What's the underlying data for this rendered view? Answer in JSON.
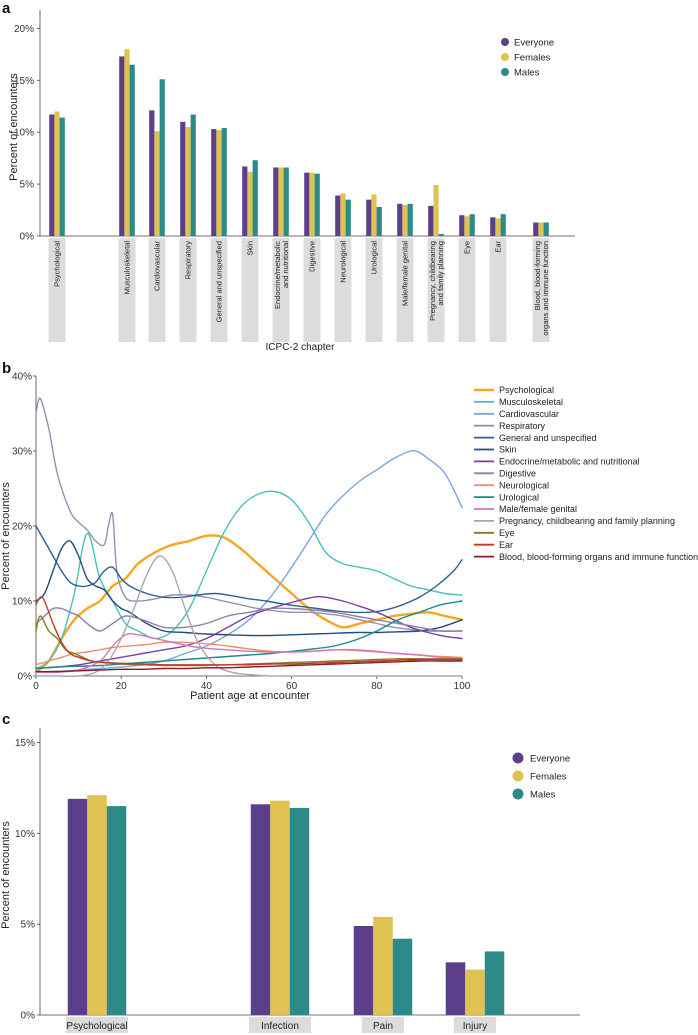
{
  "colors": {
    "everyone": "#5b3f8a",
    "females": "#dfc252",
    "males": "#2e8a89",
    "label_box": "#dcdcdc",
    "axis": "#444444"
  },
  "chart_data": [
    {
      "panel": "a",
      "type": "bar",
      "title": "",
      "xlabel": "ICPC-2 chapter",
      "ylabel": "Percent of encounters",
      "ylim": [
        0,
        21
      ],
      "yticks": [
        "0%",
        "5%",
        "10%",
        "15%",
        "20%"
      ],
      "legend_position": "top-right",
      "categories": [
        "Psychological",
        "Musculoskeletal",
        "Cardiovascular",
        "Respiratory",
        "General and unspecified",
        "Skin",
        "Endocrine/metabolic and nutritional",
        "Digestive",
        "Neurological",
        "Urological",
        "Male/female genital",
        "Pregnancy, childbearing and family planning",
        "Eye",
        "Ear",
        "Blood, blood-forming organs and immune function"
      ],
      "series": [
        {
          "name": "Everyone",
          "values": [
            11.7,
            17.3,
            12.1,
            11.0,
            10.3,
            6.7,
            6.6,
            6.1,
            3.9,
            3.5,
            3.1,
            2.9,
            2.0,
            1.8,
            1.3
          ]
        },
        {
          "name": "Females",
          "values": [
            12.0,
            18.0,
            10.1,
            10.5,
            10.2,
            6.2,
            6.6,
            6.1,
            4.1,
            4.0,
            3.0,
            4.9,
            1.9,
            1.7,
            1.3
          ]
        },
        {
          "name": "Males",
          "values": [
            11.4,
            16.5,
            15.1,
            11.7,
            10.4,
            7.3,
            6.6,
            6.0,
            3.5,
            2.8,
            3.1,
            0.2,
            2.1,
            2.1,
            1.3
          ]
        }
      ]
    },
    {
      "panel": "b",
      "type": "line",
      "title": "",
      "xlabel": "Patient age at encounter",
      "ylabel": "Percent of encounters",
      "xlim": [
        0,
        100
      ],
      "ylim": [
        0,
        40
      ],
      "xticks": [
        "0",
        "20",
        "40",
        "60",
        "80",
        "100"
      ],
      "yticks": [
        "0%",
        "10%",
        "20%",
        "30%",
        "40%"
      ],
      "legend_position": "right",
      "series": [
        {
          "name": "Psychological",
          "color": "#f5a623",
          "x": [
            0,
            3,
            6,
            9,
            12,
            15,
            18,
            21,
            24,
            28,
            32,
            36,
            40,
            44,
            48,
            52,
            56,
            60,
            64,
            68,
            72,
            76,
            80,
            84,
            88,
            92,
            96,
            100
          ],
          "y": [
            0.5,
            2,
            5,
            7.5,
            9,
            10,
            12,
            13,
            15,
            16.5,
            17.5,
            18,
            18.7,
            18.5,
            17,
            15,
            13,
            11,
            9,
            7.5,
            6.5,
            7,
            7.5,
            8,
            8.3,
            8.5,
            8,
            7.5
          ]
        },
        {
          "name": "Musculoskeletal",
          "color": "#4cbfb9",
          "x": [
            0,
            3,
            6,
            9,
            12,
            15,
            18,
            21,
            24,
            28,
            32,
            36,
            40,
            44,
            48,
            52,
            56,
            60,
            64,
            68,
            72,
            76,
            80,
            84,
            88,
            92,
            96,
            100
          ],
          "y": [
            1,
            2,
            5,
            11,
            19,
            13,
            10,
            7,
            6,
            5,
            6,
            9,
            14,
            19,
            22.5,
            24.2,
            24.6,
            23.5,
            20.5,
            16.5,
            15,
            14.5,
            14,
            13,
            12,
            11.5,
            11,
            10.8
          ]
        },
        {
          "name": "Cardiovascular",
          "color": "#7aa6de",
          "x": [
            0,
            5,
            10,
            15,
            20,
            25,
            30,
            35,
            40,
            45,
            50,
            55,
            60,
            64,
            68,
            72,
            76,
            80,
            84,
            88,
            90,
            92,
            96,
            100
          ],
          "y": [
            0.5,
            0.6,
            0.8,
            1,
            1.2,
            1.5,
            2,
            3,
            4,
            5.5,
            7.5,
            10.5,
            14.5,
            18,
            21.5,
            24,
            26,
            27.5,
            29,
            30,
            29.8,
            29,
            27,
            22.5
          ]
        },
        {
          "name": "Respiratory",
          "color": "#9b8cb5",
          "x": [
            0,
            1,
            3,
            5,
            8,
            10,
            12,
            14,
            16,
            17,
            18,
            19,
            21,
            24,
            28,
            32,
            36,
            40,
            44,
            48,
            52,
            56,
            60,
            64,
            68,
            72,
            76,
            80,
            84,
            88,
            92,
            96,
            100
          ],
          "y": [
            35,
            37,
            33,
            27,
            22,
            20.5,
            19.5,
            18,
            17.5,
            20,
            21.5,
            14,
            10.5,
            10,
            10.3,
            10.8,
            10.8,
            10.5,
            10,
            9.5,
            9,
            8.7,
            8.5,
            8.5,
            8.3,
            8,
            7.5,
            7,
            6.5,
            6.2,
            6,
            6,
            6
          ]
        },
        {
          "name": "General and unspecified",
          "color": "#2e5f8f",
          "x": [
            0,
            2,
            4,
            6,
            8,
            10,
            12,
            14,
            16,
            18,
            20,
            22,
            26,
            30,
            34,
            38,
            42,
            46,
            50,
            54,
            58,
            62,
            66,
            70,
            74,
            78,
            82,
            86,
            90,
            94,
            98,
            100
          ],
          "y": [
            20,
            18,
            16,
            14,
            12.5,
            12,
            12,
            12.5,
            14,
            14.5,
            13,
            12,
            11,
            10.5,
            10.5,
            10.8,
            11,
            10.7,
            10.3,
            10,
            9.6,
            9.3,
            9,
            8.7,
            8.5,
            8.5,
            8.8,
            9.5,
            10.5,
            12,
            14,
            15.5
          ]
        },
        {
          "name": "Skin",
          "color": "#1f4e79",
          "x": [
            0,
            2,
            4,
            6,
            8,
            10,
            12,
            14,
            16,
            18,
            20,
            22,
            26,
            30,
            35,
            40,
            45,
            50,
            55,
            60,
            65,
            70,
            75,
            80,
            85,
            90,
            95,
            100
          ],
          "y": [
            10,
            11,
            14,
            17,
            18,
            16,
            13,
            12,
            11.5,
            10,
            9,
            8.5,
            7,
            6,
            5.8,
            5.6,
            5.5,
            5.4,
            5.4,
            5.5,
            5.6,
            5.7,
            5.8,
            5.8,
            5.9,
            6,
            6.5,
            7.5
          ]
        },
        {
          "name": "Endocrine/metabolic and nutritional",
          "color": "#7b3fa0",
          "x": [
            0,
            5,
            10,
            15,
            20,
            25,
            30,
            35,
            40,
            45,
            50,
            55,
            60,
            65,
            68,
            72,
            76,
            80,
            84,
            88,
            92,
            96,
            100
          ],
          "y": [
            1,
            1.2,
            1.5,
            2,
            2.5,
            3,
            3.5,
            4,
            5,
            6.5,
            8,
            9,
            9.8,
            10.5,
            10.5,
            10,
            9.3,
            8.5,
            7.5,
            6.5,
            5.8,
            5.3,
            5
          ]
        },
        {
          "name": "Digestive",
          "color": "#8e7fa8",
          "x": [
            0,
            2,
            4,
            6,
            8,
            10,
            12,
            15,
            18,
            21,
            25,
            30,
            35,
            40,
            45,
            50,
            55,
            60,
            65,
            70,
            75,
            80,
            85,
            90,
            95,
            100
          ],
          "y": [
            7,
            8,
            9,
            9,
            8.5,
            8,
            7,
            6,
            7,
            8,
            7.5,
            6.5,
            6.5,
            7,
            8,
            8.5,
            9,
            9,
            8.8,
            8.5,
            8,
            7.5,
            7,
            6.5,
            6,
            6
          ]
        },
        {
          "name": "Neurological",
          "color": "#e8916a",
          "x": [
            0,
            3,
            6,
            9,
            12,
            15,
            18,
            22,
            26,
            30,
            35,
            40,
            45,
            50,
            55,
            60,
            65,
            70,
            75,
            80,
            85,
            90,
            95,
            100
          ],
          "y": [
            1.5,
            2,
            2.5,
            3,
            3.2,
            3.5,
            3.8,
            4,
            4.2,
            4.5,
            4.5,
            4.3,
            4,
            3.6,
            3.3,
            3.2,
            3.3,
            3.5,
            3.4,
            3.2,
            3,
            2.8,
            2.6,
            2.5
          ]
        },
        {
          "name": "Urological",
          "color": "#1d8c8a",
          "x": [
            0,
            5,
            10,
            15,
            20,
            25,
            30,
            35,
            40,
            45,
            50,
            55,
            60,
            65,
            70,
            75,
            80,
            85,
            90,
            95,
            100
          ],
          "y": [
            1,
            1.2,
            1.3,
            1.4,
            1.6,
            1.8,
            2,
            2.2,
            2.4,
            2.6,
            2.8,
            3,
            3.3,
            3.6,
            4,
            4.8,
            6,
            7.5,
            8.5,
            9.5,
            10
          ]
        },
        {
          "name": "Male/female genital",
          "color": "#d278b6",
          "x": [
            0,
            5,
            10,
            15,
            18,
            21,
            24,
            28,
            32,
            36,
            40,
            45,
            50,
            55,
            60,
            65,
            70,
            75,
            80,
            85,
            90,
            95,
            100
          ],
          "y": [
            0.5,
            0.5,
            0.8,
            2,
            4,
            5.5,
            5.5,
            5,
            4.5,
            4,
            3.7,
            3.5,
            3.3,
            3.2,
            3.2,
            3.3,
            3.5,
            3.5,
            3.3,
            3,
            2.8,
            2.5,
            2.3
          ]
        },
        {
          "name": "Pregnancy, childbearing and family planning",
          "color": "#a8a8a8",
          "x": [
            0,
            5,
            10,
            14,
            17,
            20,
            23,
            26,
            29,
            32,
            35,
            38,
            42,
            46,
            50,
            55,
            60,
            100
          ],
          "y": [
            0,
            0,
            0,
            0.5,
            2,
            5,
            9,
            13.5,
            16,
            14,
            9,
            4.5,
            1.5,
            0.5,
            0.2,
            0,
            0,
            0
          ]
        },
        {
          "name": "Eye",
          "color": "#8a7a1e",
          "x": [
            0,
            1,
            3,
            5,
            7,
            9,
            11,
            13,
            16,
            20,
            25,
            30,
            35,
            40,
            45,
            50,
            55,
            60,
            65,
            70,
            75,
            80,
            85,
            90,
            95,
            100
          ],
          "y": [
            6,
            8,
            6,
            5,
            3.5,
            3,
            2.5,
            2,
            1.8,
            1.6,
            1.5,
            1.4,
            1.4,
            1.4,
            1.5,
            1.6,
            1.7,
            1.8,
            1.9,
            2,
            2.1,
            2.2,
            2.3,
            2.3,
            2.3,
            2.3
          ]
        },
        {
          "name": "Ear",
          "color": "#c0392b",
          "x": [
            0,
            1,
            2,
            4,
            6,
            8,
            10,
            13,
            16,
            20,
            25,
            30,
            35,
            40,
            45,
            50,
            55,
            60,
            65,
            70,
            75,
            80,
            85,
            90,
            95,
            100
          ],
          "y": [
            9.5,
            10.5,
            10,
            7,
            4.5,
            3,
            2.5,
            2,
            1.8,
            1.7,
            1.6,
            1.5,
            1.5,
            1.5,
            1.5,
            1.5,
            1.6,
            1.6,
            1.7,
            1.8,
            1.9,
            2,
            2.1,
            2.2,
            2.2,
            2.2
          ]
        },
        {
          "name": "Blood, blood-forming organs and immune function",
          "color": "#8b1a2b",
          "x": [
            0,
            5,
            10,
            15,
            20,
            25,
            30,
            35,
            40,
            45,
            50,
            55,
            60,
            65,
            70,
            75,
            80,
            85,
            90,
            95,
            100
          ],
          "y": [
            0.6,
            0.6,
            0.7,
            0.8,
            0.9,
            0.9,
            1,
            1,
            1.1,
            1.1,
            1.2,
            1.3,
            1.4,
            1.5,
            1.6,
            1.7,
            1.8,
            1.9,
            2,
            2,
            2
          ]
        }
      ]
    },
    {
      "panel": "c",
      "type": "bar",
      "title": "",
      "xlabel": "",
      "ylabel": "Percent of encounters",
      "ylim": [
        0,
        15.8
      ],
      "yticks": [
        "0%",
        "5%",
        "10%",
        "15%"
      ],
      "legend_position": "top-right",
      "categories": [
        "Psychological",
        "Infection",
        "Pain",
        "Injury"
      ],
      "series": [
        {
          "name": "Everyone",
          "values": [
            11.9,
            11.6,
            4.9,
            2.9
          ]
        },
        {
          "name": "Females",
          "values": [
            12.1,
            11.8,
            5.4,
            2.5
          ]
        },
        {
          "name": "Males",
          "values": [
            11.5,
            11.4,
            4.2,
            3.5
          ]
        }
      ]
    }
  ]
}
